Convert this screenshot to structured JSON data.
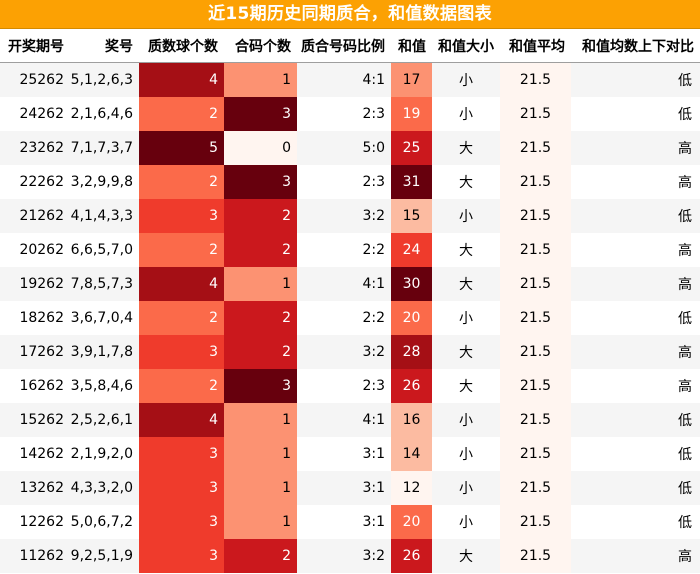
{
  "title": "近15期历史同期质合，和值数据图表",
  "headers": [
    "开奖期号",
    "奖号",
    "质数球个数",
    "合码个数",
    "质合号码比例",
    "和值",
    "和值大小",
    "和值平均",
    "和值均数上下对比"
  ],
  "colors": {
    "title_bg": "#fca103",
    "title_text": "#ffffff",
    "heat_scale": [
      "#fff5f0",
      "#fcbba1",
      "#fc9272",
      "#fb6a4a",
      "#ef3b2c",
      "#cb181d",
      "#a50f15",
      "#67000d"
    ],
    "avg_bg": "#fff5f0"
  },
  "chart_data": {
    "type": "table",
    "title": "近15期历史同期质合，和值数据图表",
    "columns": [
      "开奖期号",
      "奖号",
      "质数球个数",
      "合码个数",
      "质合号码比例",
      "和值",
      "和值大小",
      "和值平均",
      "和值均数上下对比"
    ],
    "rows": [
      {
        "period": "25262",
        "numbers": "5,1,2,6,3",
        "primes": 4,
        "composites": 1,
        "ratio": "4:1",
        "sum": 17,
        "size": "小",
        "avg": "21.5",
        "compare": "低"
      },
      {
        "period": "24262",
        "numbers": "2,1,6,4,6",
        "primes": 2,
        "composites": 3,
        "ratio": "2:3",
        "sum": 19,
        "size": "小",
        "avg": "21.5",
        "compare": "低"
      },
      {
        "period": "23262",
        "numbers": "7,1,7,3,7",
        "primes": 5,
        "composites": 0,
        "ratio": "5:0",
        "sum": 25,
        "size": "大",
        "avg": "21.5",
        "compare": "高"
      },
      {
        "period": "22262",
        "numbers": "3,2,9,9,8",
        "primes": 2,
        "composites": 3,
        "ratio": "2:3",
        "sum": 31,
        "size": "大",
        "avg": "21.5",
        "compare": "高"
      },
      {
        "period": "21262",
        "numbers": "4,1,4,3,3",
        "primes": 3,
        "composites": 2,
        "ratio": "3:2",
        "sum": 15,
        "size": "小",
        "avg": "21.5",
        "compare": "低"
      },
      {
        "period": "20262",
        "numbers": "6,6,5,7,0",
        "primes": 2,
        "composites": 2,
        "ratio": "2:2",
        "sum": 24,
        "size": "大",
        "avg": "21.5",
        "compare": "高"
      },
      {
        "period": "19262",
        "numbers": "7,8,5,7,3",
        "primes": 4,
        "composites": 1,
        "ratio": "4:1",
        "sum": 30,
        "size": "大",
        "avg": "21.5",
        "compare": "高"
      },
      {
        "period": "18262",
        "numbers": "3,6,7,0,4",
        "primes": 2,
        "composites": 2,
        "ratio": "2:2",
        "sum": 20,
        "size": "小",
        "avg": "21.5",
        "compare": "低"
      },
      {
        "period": "17262",
        "numbers": "3,9,1,7,8",
        "primes": 3,
        "composites": 2,
        "ratio": "3:2",
        "sum": 28,
        "size": "大",
        "avg": "21.5",
        "compare": "高"
      },
      {
        "period": "16262",
        "numbers": "3,5,8,4,6",
        "primes": 2,
        "composites": 3,
        "ratio": "2:3",
        "sum": 26,
        "size": "大",
        "avg": "21.5",
        "compare": "高"
      },
      {
        "period": "15262",
        "numbers": "2,5,2,6,1",
        "primes": 4,
        "composites": 1,
        "ratio": "4:1",
        "sum": 16,
        "size": "小",
        "avg": "21.5",
        "compare": "低"
      },
      {
        "period": "14262",
        "numbers": "2,1,9,2,0",
        "primes": 3,
        "composites": 1,
        "ratio": "3:1",
        "sum": 14,
        "size": "小",
        "avg": "21.5",
        "compare": "低"
      },
      {
        "period": "13262",
        "numbers": "4,3,3,2,0",
        "primes": 3,
        "composites": 1,
        "ratio": "3:1",
        "sum": 12,
        "size": "小",
        "avg": "21.5",
        "compare": "低"
      },
      {
        "period": "12262",
        "numbers": "5,0,6,7,2",
        "primes": 3,
        "composites": 1,
        "ratio": "3:1",
        "sum": 20,
        "size": "小",
        "avg": "21.5",
        "compare": "低"
      },
      {
        "period": "11262",
        "numbers": "9,2,5,1,9",
        "primes": 3,
        "composites": 2,
        "ratio": "3:2",
        "sum": 26,
        "size": "大",
        "avg": "21.5",
        "compare": "高"
      }
    ]
  }
}
